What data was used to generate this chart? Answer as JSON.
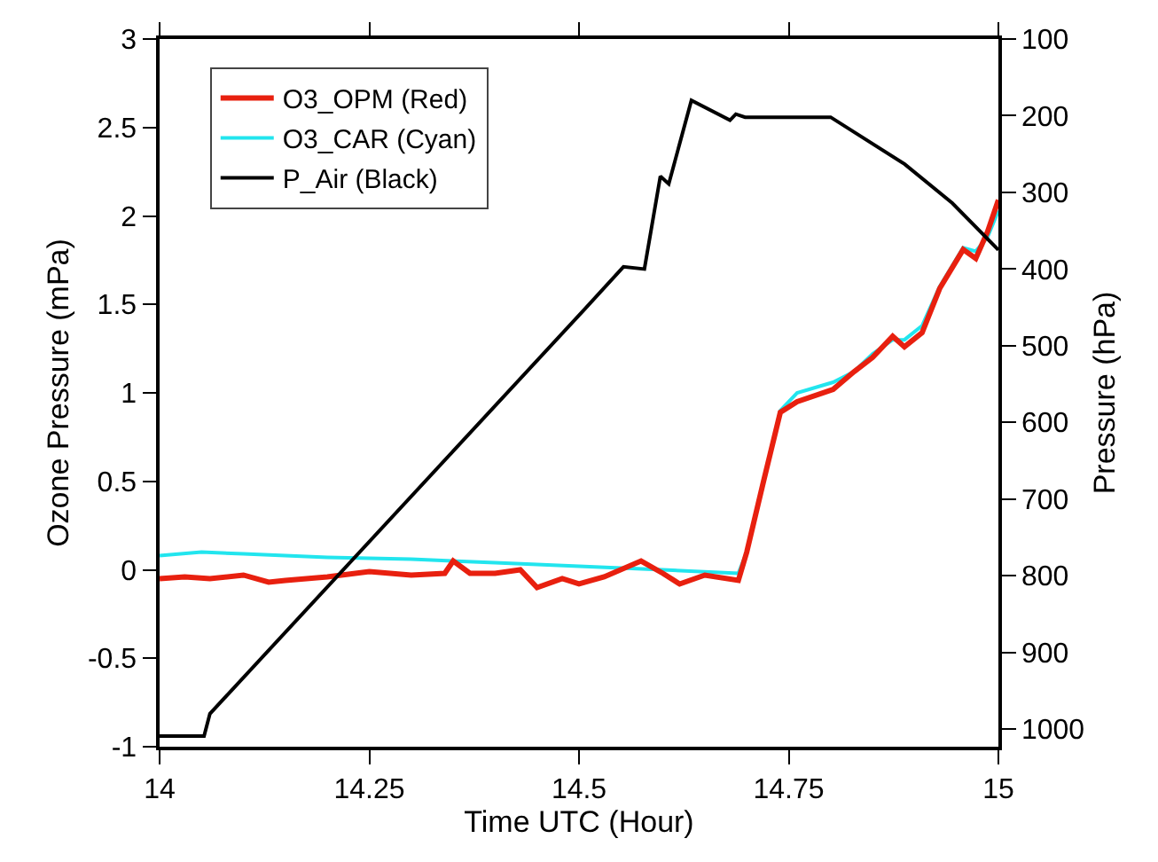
{
  "chart_data": {
    "type": "line",
    "xlabel": "Time UTC (Hour)",
    "ylabel": "Ozone Pressure (mPa)",
    "y2label": "Pressure (hPa)",
    "xlim": [
      14,
      15
    ],
    "xticks": [
      14,
      14.25,
      14.5,
      14.75,
      15
    ],
    "ylim": [
      -1,
      3
    ],
    "yticks": [
      -1,
      -0.5,
      0,
      0.5,
      1,
      1.5,
      2,
      2.5,
      3
    ],
    "y2lim": [
      1023,
      100
    ],
    "y2ticks": [
      100,
      200,
      300,
      400,
      500,
      600,
      700,
      800,
      900,
      1000
    ],
    "legend": "top left",
    "marker": "none",
    "line_style": "solid",
    "series": [
      {
        "name": "O3_OPM (Red)",
        "color": "#e8200f",
        "x": [
          14,
          14.03,
          14.06,
          14.1,
          14.13,
          14.15,
          14.2,
          14.25,
          14.3,
          14.34,
          14.35,
          14.37,
          14.4,
          14.43,
          14.45,
          14.48,
          14.5,
          14.53,
          14.574,
          14.6,
          14.62,
          14.65,
          14.69,
          14.7,
          14.72,
          14.74,
          14.76,
          14.803,
          14.828,
          14.85,
          14.874,
          14.888,
          14.909,
          14.93,
          14.958,
          14.973,
          14.987,
          15
        ],
        "values": [
          -0.05,
          -0.04,
          -0.05,
          -0.03,
          -0.07,
          -0.06,
          -0.04,
          -0.01,
          -0.03,
          -0.02,
          0.05,
          -0.02,
          -0.02,
          0.0,
          -0.1,
          -0.05,
          -0.08,
          -0.04,
          0.05,
          -0.02,
          -0.08,
          -0.03,
          -0.06,
          0.1,
          0.5,
          0.89,
          0.95,
          1.02,
          1.12,
          1.2,
          1.32,
          1.26,
          1.34,
          1.59,
          1.81,
          1.76,
          1.91,
          2.09
        ]
      },
      {
        "name": "O3_CAR (Cyan)",
        "color": "#22e5ee",
        "x": [
          14,
          14.05,
          14.1,
          14.15,
          14.2,
          14.3,
          14.4,
          14.5,
          14.6,
          14.69,
          14.7,
          14.72,
          14.74,
          14.76,
          14.803,
          14.828,
          14.85,
          14.874,
          14.888,
          14.909,
          14.93,
          14.958,
          14.973,
          14.987,
          15
        ],
        "values": [
          0.08,
          0.1,
          0.09,
          0.08,
          0.07,
          0.06,
          0.04,
          0.02,
          0.0,
          -0.02,
          0.1,
          0.5,
          0.9,
          1.0,
          1.06,
          1.12,
          1.22,
          1.3,
          1.3,
          1.38,
          1.6,
          1.82,
          1.8,
          1.88,
          2.03
        ]
      },
      {
        "name": "P_Air (Black)",
        "color": "#000000",
        "axis": "y2",
        "x": [
          14,
          14.053,
          14.06,
          14.507,
          14.553,
          14.578,
          14.597,
          14.607,
          14.634,
          14.68,
          14.687,
          14.698,
          14.8,
          14.888,
          14.945,
          15
        ],
        "values": [
          1009,
          1009,
          980,
          452,
          397,
          400,
          279,
          289,
          180,
          206,
          198,
          202,
          202,
          263,
          314,
          375
        ]
      }
    ]
  }
}
